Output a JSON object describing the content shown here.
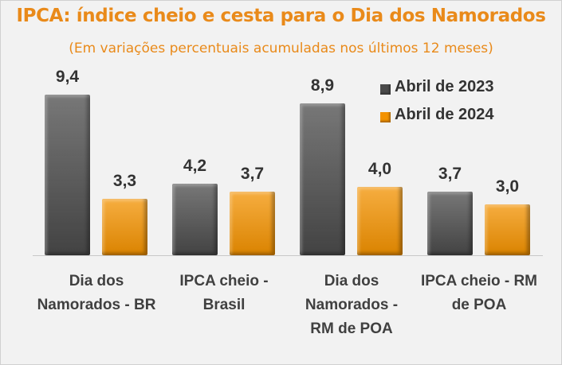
{
  "chart_data": {
    "type": "bar",
    "title": "IPCA: índice cheio e cesta para o Dia dos Namorados",
    "subtitle": "(Em variações percentuais acumuladas nos últimos 12 meses)",
    "categories": [
      "Dia dos Namorados - BR",
      "IPCA cheio - Brasil",
      "Dia dos Namorados - RM de POA",
      "IPCA cheio - RM de POA"
    ],
    "series": [
      {
        "name": "Abril de 2023",
        "color": "#4a4a4a",
        "values": [
          9.4,
          4.2,
          8.9,
          3.7
        ],
        "value_labels": [
          "9,4",
          "4,2",
          "8,9",
          "3,7"
        ]
      },
      {
        "name": "Abril de 2024",
        "color": "#f39200",
        "values": [
          3.3,
          3.7,
          4.0,
          3.0
        ],
        "value_labels": [
          "3,3",
          "3,7",
          "4,0",
          "3,0"
        ]
      }
    ],
    "ylim": [
      0,
      10
    ],
    "legend": "top-right"
  }
}
